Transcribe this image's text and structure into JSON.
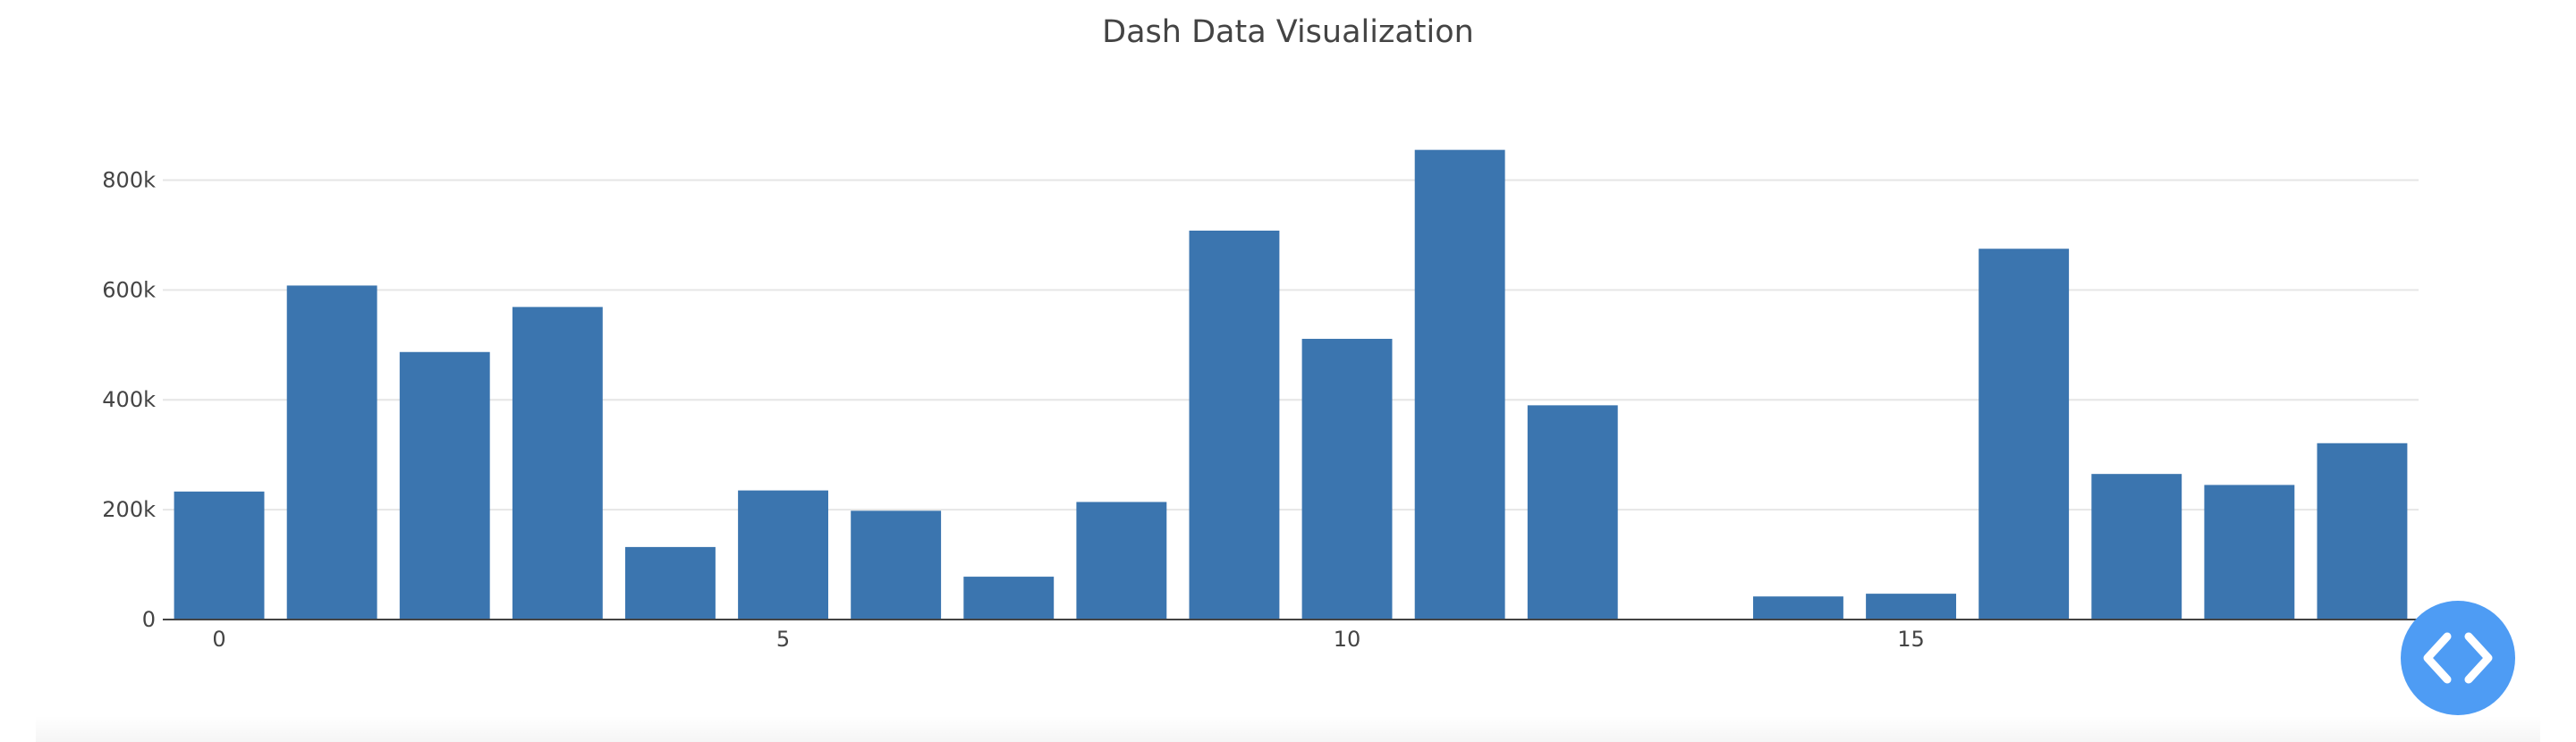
{
  "chart_data": {
    "type": "bar",
    "title": "Dash Data Visualization",
    "xlabel": "",
    "ylabel": "",
    "x": [
      0,
      1,
      2,
      3,
      4,
      5,
      6,
      7,
      8,
      9,
      10,
      11,
      12,
      13,
      14,
      15,
      16,
      17,
      18,
      19
    ],
    "values": [
      233000,
      608000,
      487000,
      569000,
      132000,
      235000,
      198000,
      78000,
      214000,
      708000,
      511000,
      855000,
      390000,
      0,
      42000,
      47000,
      675000,
      265000,
      245000,
      321000
    ],
    "x_ticks": [
      0,
      5,
      10,
      15
    ],
    "x_tick_labels": [
      "0",
      "5",
      "10",
      "15"
    ],
    "y_ticks": [
      0,
      200000,
      400000,
      600000,
      800000
    ],
    "y_tick_labels": [
      "0",
      "200k",
      "400k",
      "600k",
      "800k"
    ],
    "xlim": [
      -0.5,
      19.5
    ],
    "ylim": [
      0,
      900000
    ],
    "grid": "y",
    "bar_color": "#3b75af",
    "grid_color": "#e6e6e6",
    "axis_color": "#444444"
  },
  "code_toggle": {
    "icon": "code-brackets-icon",
    "color": "#4e9cf4"
  }
}
